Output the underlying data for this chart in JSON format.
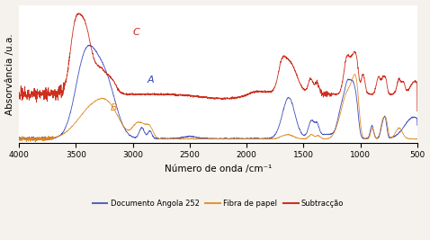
{
  "xlabel": "Número de onda /cm⁻¹",
  "ylabel": "Absorvância /u.a.",
  "line_colors": {
    "A": "#3344bb",
    "B": "#dd8822",
    "C": "#cc2211"
  },
  "legend_labels": [
    "Documento Angola 252",
    "Fibra de papel",
    "Subtracção"
  ],
  "legend_colors": [
    "#5566bb",
    "#dd9933",
    "#cc3322"
  ],
  "label_A": "A",
  "label_B": "B",
  "label_C": "C",
  "background_color": "#f5f2ee"
}
